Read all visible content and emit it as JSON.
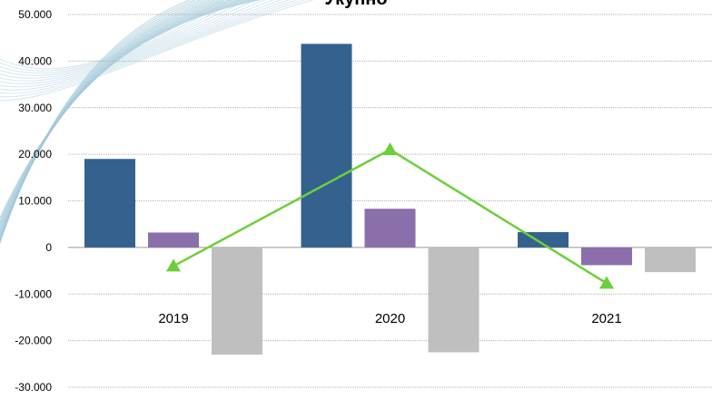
{
  "chart_data": {
    "type": "bar",
    "title": "Укупно",
    "categories": [
      "2019",
      "2020",
      "2021"
    ],
    "series": [
      {
        "kind": "bar",
        "color": "#35618f",
        "values": [
          19000,
          43700,
          3300
        ]
      },
      {
        "kind": "bar",
        "color": "#8a6fab",
        "values": [
          3200,
          8300,
          -3800
        ]
      },
      {
        "kind": "bar",
        "color": "#bfbfbf",
        "values": [
          -23000,
          -22500,
          -5300
        ]
      },
      {
        "kind": "line",
        "color": "#6ccf3a",
        "marker": "triangle",
        "values": [
          -4000,
          21000,
          -7700
        ]
      }
    ],
    "yticks": [
      "50.000",
      "40.000",
      "30.000",
      "20.000",
      "10.000",
      "0",
      "-10.000",
      "-20.000",
      "-30.000"
    ],
    "ytick_values": [
      50000,
      40000,
      30000,
      20000,
      10000,
      0,
      -10000,
      -20000,
      -30000
    ],
    "ylim": [
      -30000,
      50000
    ],
    "grid": true,
    "legend": "none"
  }
}
